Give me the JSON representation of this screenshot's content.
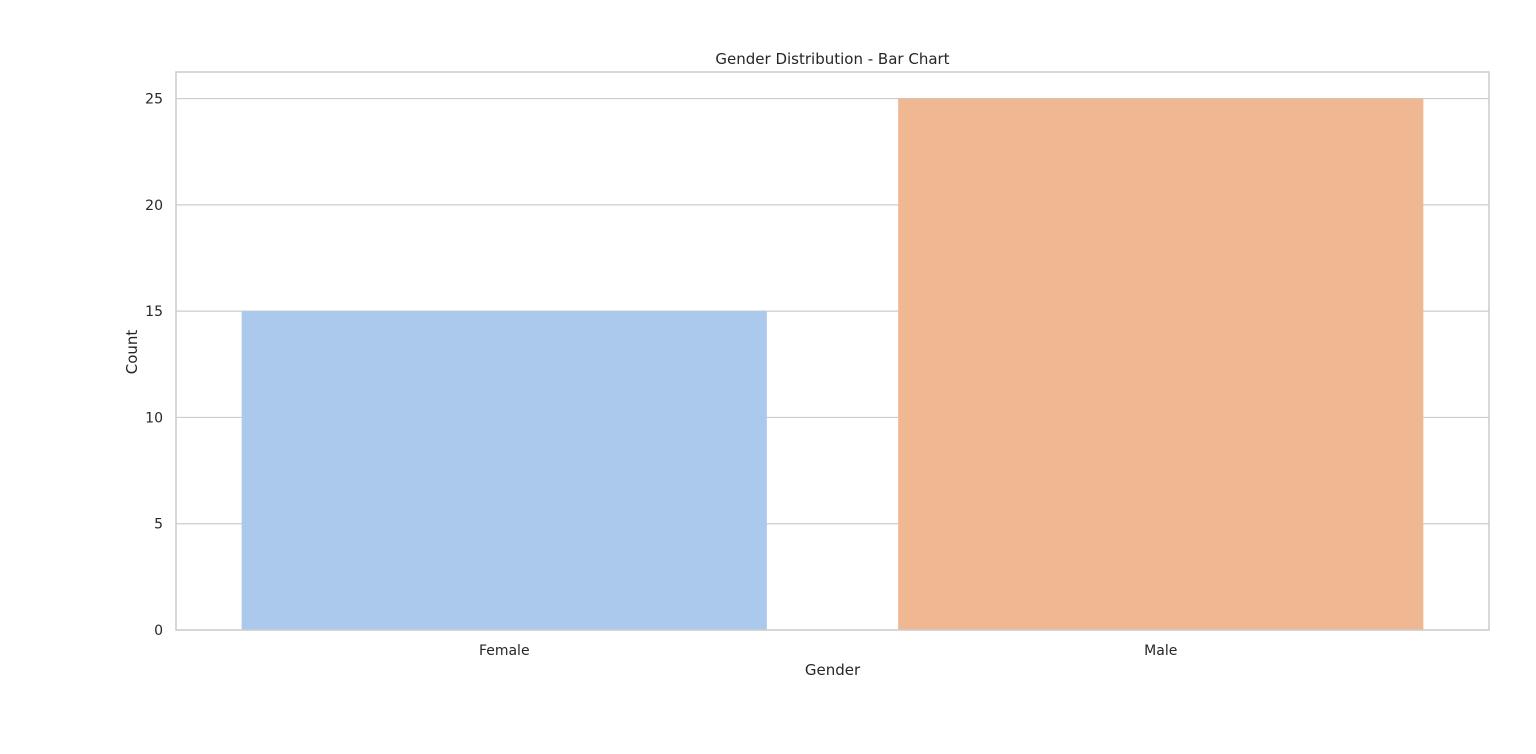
{
  "chart_data": {
    "type": "bar",
    "title": "Gender Distribution - Bar Chart",
    "xlabel": "Gender",
    "ylabel": "Count",
    "categories": [
      "Female",
      "Male"
    ],
    "values": [
      15,
      25
    ],
    "ylim": [
      0,
      26.25
    ],
    "yticks": [
      0,
      5,
      10,
      15,
      20,
      25
    ],
    "grid": true,
    "colors": [
      "#abc9ec",
      "#f0b892"
    ],
    "grid_color": "#cccccc",
    "spine_color": "#cccccc"
  }
}
